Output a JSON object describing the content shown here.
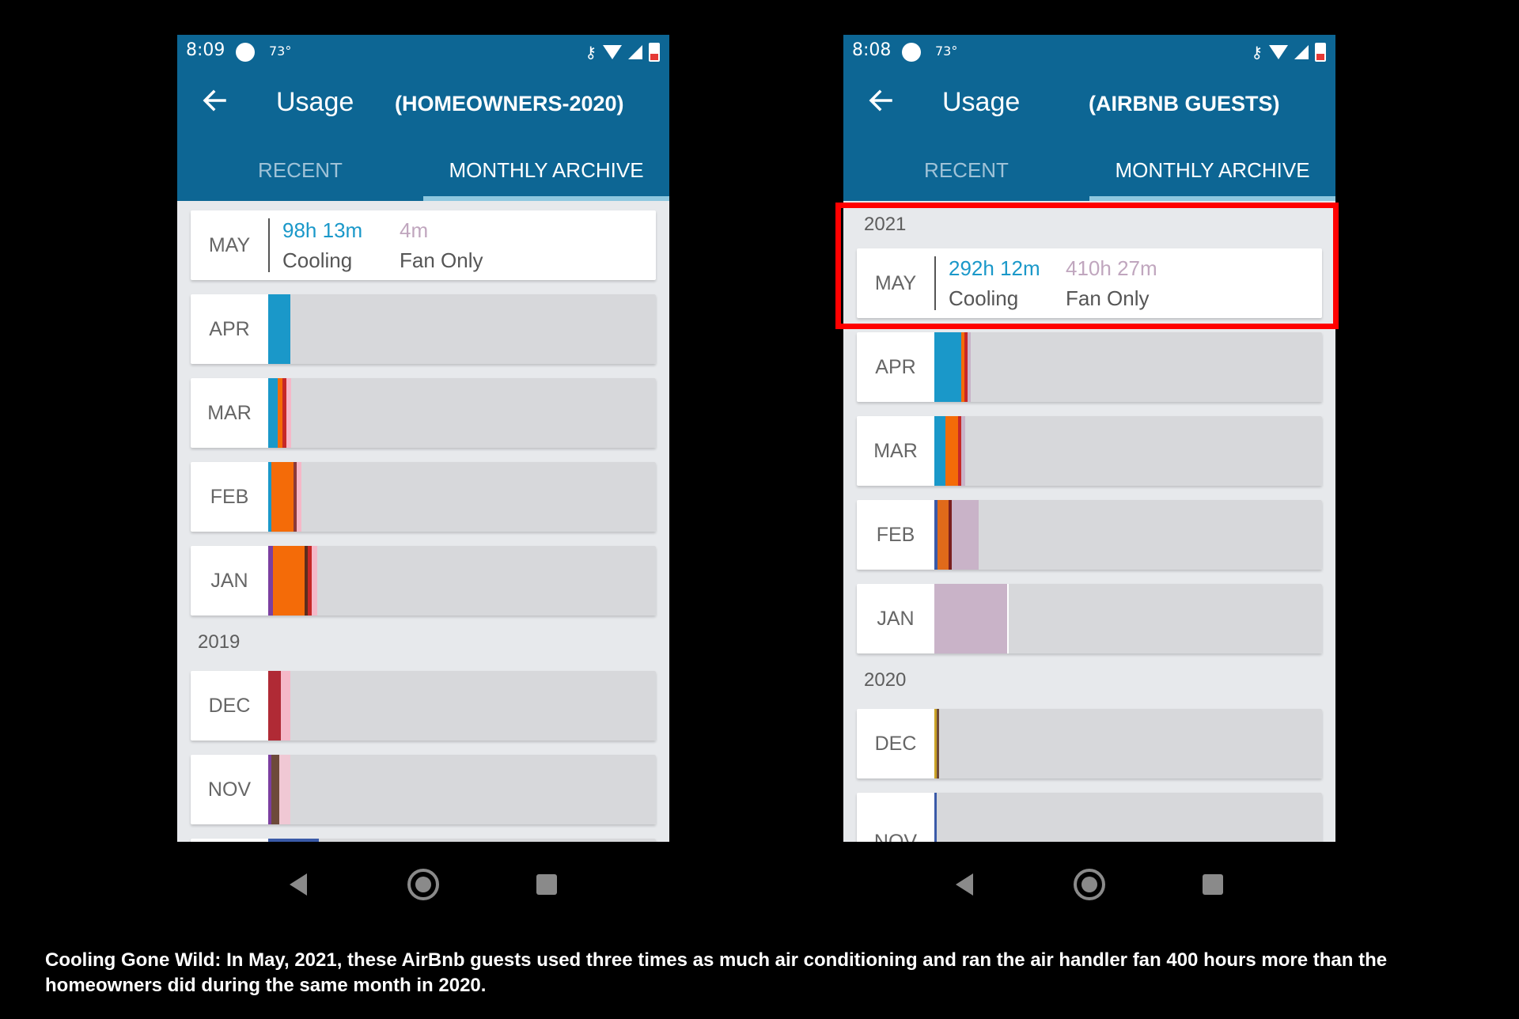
{
  "phones": [
    {
      "status": {
        "time": "8:09",
        "temp": "73°"
      },
      "header": {
        "title": "Usage",
        "subtitle": "(HOMEOWNERS-2020)"
      },
      "tabs": {
        "recent": "RECENT",
        "monthly": "MONTHLY ARCHIVE"
      },
      "summary": {
        "month": "MAY",
        "cooling_value": "98h 13m",
        "cooling_label": "Cooling",
        "fan_value": "4m",
        "fan_label": "Fan Only"
      },
      "year_label": "2019",
      "months": [
        "APR",
        "MAR",
        "FEB",
        "JAN",
        "DEC",
        "NOV"
      ]
    },
    {
      "status": {
        "time": "8:08",
        "temp": "73°"
      },
      "header": {
        "title": "Usage",
        "subtitle": "(AIRBNB GUESTS)"
      },
      "tabs": {
        "recent": "RECENT",
        "monthly": "MONTHLY ARCHIVE"
      },
      "top_year_label": "2021",
      "summary": {
        "month": "MAY",
        "cooling_value": "292h 12m",
        "cooling_label": "Cooling",
        "fan_value": "410h 27m",
        "fan_label": "Fan Only"
      },
      "year_label": "2020",
      "months": [
        "APR",
        "MAR",
        "FEB",
        "JAN",
        "DEC",
        "NOV"
      ]
    }
  ],
  "caption": "Cooling Gone Wild:  In May, 2021, these AirBnb guests used three times as much air conditioning and ran the air handler fan 400 hours more than the homeowners did during the same month in 2020.",
  "colors": {
    "header": "#0d6694",
    "cooling": "#1a98c9",
    "heat": "#f46b08",
    "fan": "#c9b3c8",
    "highlight": "#ff0000"
  }
}
